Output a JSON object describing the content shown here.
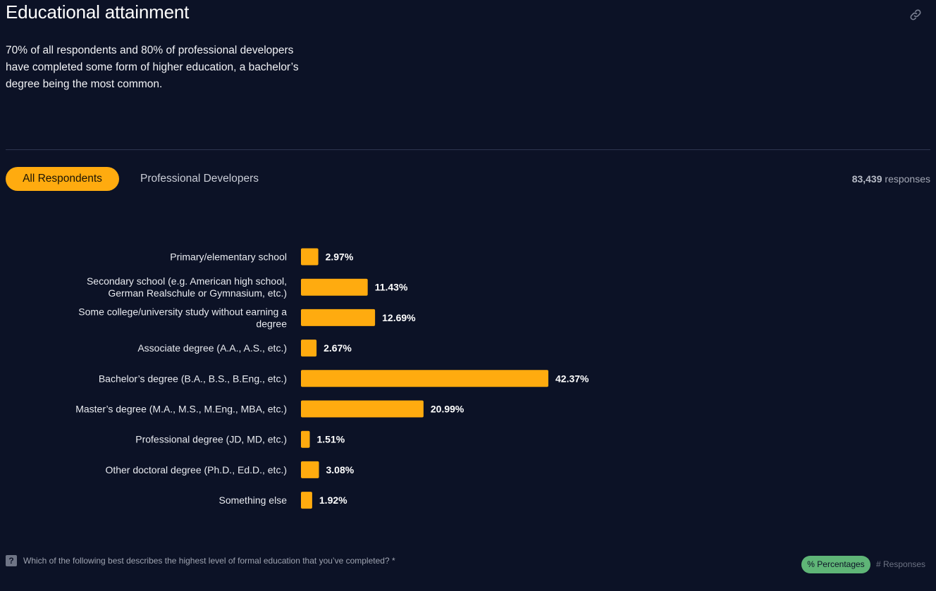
{
  "header": {
    "title": "Educational attainment",
    "summary": "70% of all respondents and 80% of professional developers have completed some form of higher education, a bachelor’s degree being the most common."
  },
  "icons": {
    "link": "link-icon",
    "question": "question-icon"
  },
  "tabs": [
    {
      "label": "All Respondents",
      "active": true
    },
    {
      "label": "Professional Developers",
      "active": false
    }
  ],
  "responses": {
    "count": "83,439",
    "label": "responses"
  },
  "footer": {
    "question_mark": "?",
    "question": "Which of the following best describes the highest level of formal education that you’ve completed? *",
    "percentages_label": "% Percentages",
    "responses_label": "# Responses"
  },
  "colors": {
    "background": "#0c1226",
    "bar": "#ffab0f",
    "active_tab": "#ffab0f",
    "percentages_pill": "#5fb577"
  },
  "chart_data": {
    "type": "bar",
    "orientation": "horizontal",
    "categories": [
      [
        "Primary/elementary school"
      ],
      [
        "Secondary school (e.g. American high school,",
        "German Realschule or Gymnasium, etc.)"
      ],
      [
        "Some college/university study without earning a",
        "degree"
      ],
      [
        "Associate degree (A.A., A.S., etc.)"
      ],
      [
        "Bachelor’s degree (B.A., B.S., B.Eng., etc.)"
      ],
      [
        "Master’s degree (M.A., M.S., M.Eng., MBA, etc.)"
      ],
      [
        "Professional degree (JD, MD, etc.)"
      ],
      [
        "Other doctoral degree (Ph.D., Ed.D., etc.)"
      ],
      [
        "Something else"
      ]
    ],
    "values": [
      2.97,
      11.43,
      12.69,
      2.67,
      42.37,
      20.99,
      1.51,
      3.08,
      1.92
    ],
    "value_labels": [
      "2.97%",
      "11.43%",
      "12.69%",
      "2.67%",
      "42.37%",
      "20.99%",
      "1.51%",
      "3.08%",
      "1.92%"
    ],
    "unit": "%",
    "grid": false,
    "legend": "none"
  }
}
